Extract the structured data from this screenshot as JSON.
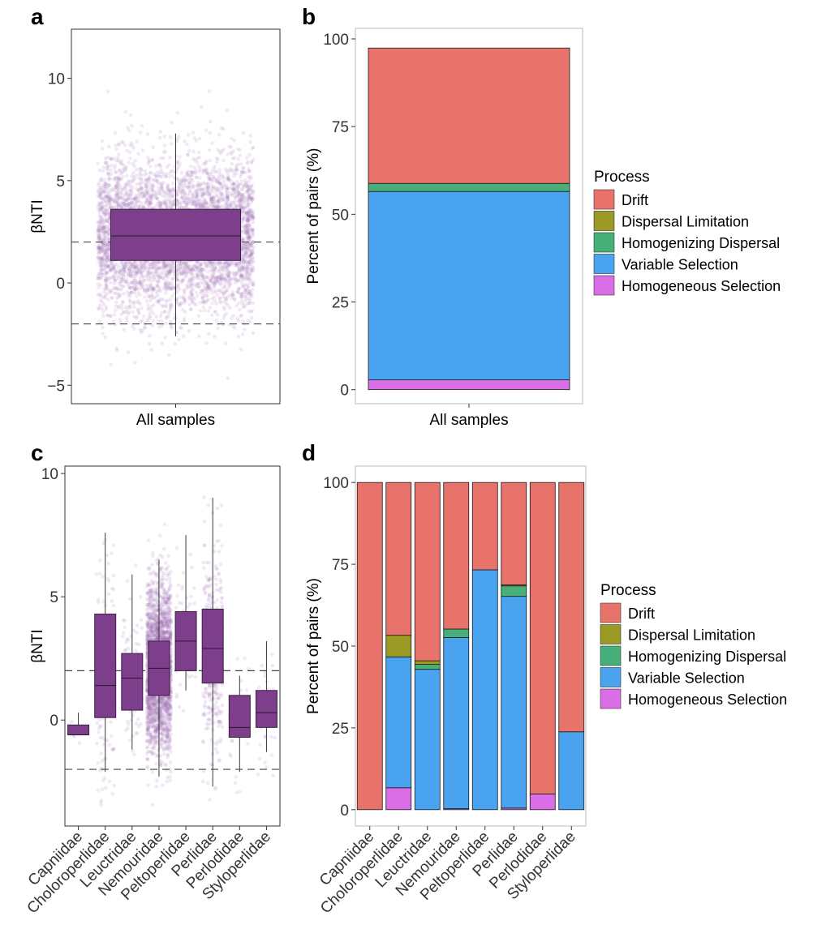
{
  "panels": {
    "a": "a",
    "b": "b",
    "c": "c",
    "d": "d"
  },
  "colors": {
    "Drift": "#e8736a",
    "Dispersal Limitation": "#9a9a25",
    "Homogenizing Dispersal": "#47b07a",
    "Variable Selection": "#4aa3ee",
    "Homogeneous Selection": "#d96ee6",
    "box": "#7d3f8c",
    "points": "#9a6bb0"
  },
  "chart_data": [
    {
      "id": "a",
      "type": "box",
      "title": "",
      "xlabel": "All samples",
      "ylabel": "βNTI",
      "ylim": [
        -5.9,
        12.4
      ],
      "yticks": [
        -5,
        0,
        5,
        10
      ],
      "ytick_labels": [
        "−5",
        "0",
        "5",
        "10"
      ],
      "hlines": [
        2,
        -2
      ],
      "categories": [
        "All samples"
      ],
      "boxes": [
        {
          "q1": 1.1,
          "median": 2.3,
          "q3": 3.6,
          "whisker_low": -2.6,
          "whisker_high": 7.3
        }
      ]
    },
    {
      "id": "b",
      "type": "bar",
      "stacked": true,
      "xlabel": "All samples",
      "ylabel": "Percent of pairs (%)",
      "ylim": [
        -4,
        103
      ],
      "yticks": [
        0,
        25,
        50,
        75,
        100
      ],
      "ytick_labels": [
        "0",
        "25",
        "50",
        "75",
        "100"
      ],
      "categories": [
        "All samples"
      ],
      "series": [
        {
          "name": "Homogeneous Selection",
          "values": [
            2.8
          ]
        },
        {
          "name": "Variable Selection",
          "values": [
            53.7
          ]
        },
        {
          "name": "Homogenizing Dispersal",
          "values": [
            2.3
          ]
        },
        {
          "name": "Dispersal Limitation",
          "values": [
            0.0
          ]
        },
        {
          "name": "Drift",
          "values": [
            38.6
          ]
        }
      ],
      "legend": {
        "title": "Process",
        "position": "right",
        "items": [
          "Drift",
          "Dispersal Limitation",
          "Homogenizing Dispersal",
          "Variable Selection",
          "Homogeneous Selection"
        ]
      }
    },
    {
      "id": "c",
      "type": "box",
      "xlabel": "",
      "ylabel": "βNTI",
      "ylim": [
        -4.3,
        10.3
      ],
      "yticks": [
        0,
        5,
        10
      ],
      "ytick_labels": [
        "0",
        "5",
        "10"
      ],
      "hlines": [
        2,
        -2
      ],
      "categories": [
        "Capniidae",
        "Choloroperlidae",
        "Leuctridae",
        "Nemouridae",
        "Peltoperlidae",
        "Perlidae",
        "Perlodidae",
        "Styloperlidae"
      ],
      "boxes": [
        {
          "q1": -0.6,
          "median": -0.6,
          "q3": -0.2,
          "whisker_low": -0.6,
          "whisker_high": 0.3
        },
        {
          "q1": 0.1,
          "median": 1.4,
          "q3": 4.3,
          "whisker_low": -2.1,
          "whisker_high": 7.6
        },
        {
          "q1": 0.4,
          "median": 1.7,
          "q3": 2.7,
          "whisker_low": -1.2,
          "whisker_high": 5.9
        },
        {
          "q1": 1.0,
          "median": 2.1,
          "q3": 3.2,
          "whisker_low": -2.3,
          "whisker_high": 6.5
        },
        {
          "q1": 2.0,
          "median": 3.2,
          "q3": 4.4,
          "whisker_low": 1.2,
          "whisker_high": 7.5
        },
        {
          "q1": 1.5,
          "median": 2.9,
          "q3": 4.5,
          "whisker_low": -2.7,
          "whisker_high": 9.0
        },
        {
          "q1": -0.7,
          "median": -0.3,
          "q3": 1.0,
          "whisker_low": -2.1,
          "whisker_high": 1.8
        },
        {
          "q1": -0.3,
          "median": 0.3,
          "q3": 1.2,
          "whisker_low": -1.3,
          "whisker_high": 3.2
        }
      ]
    },
    {
      "id": "d",
      "type": "bar",
      "stacked": true,
      "xlabel": "",
      "ylabel": "Percent of pairs (%)",
      "ylim": [
        -5,
        105
      ],
      "yticks": [
        0,
        25,
        50,
        75,
        100
      ],
      "ytick_labels": [
        "0",
        "25",
        "50",
        "75",
        "100"
      ],
      "categories": [
        "Capniidae",
        "Choloroperlidae",
        "Leuctridae",
        "Nemouridae",
        "Peltoperlidae",
        "Perlidae",
        "Perlodidae",
        "Styloperlidae"
      ],
      "series": [
        {
          "name": "Homogeneous Selection",
          "values": [
            0,
            6.7,
            0,
            0.3,
            0,
            0.5,
            4.8,
            0
          ]
        },
        {
          "name": "Variable Selection",
          "values": [
            0,
            40.0,
            42.9,
            52.3,
            73.3,
            64.7,
            0,
            23.8
          ]
        },
        {
          "name": "Homogenizing Dispersal",
          "values": [
            0,
            0,
            1.5,
            2.6,
            0,
            3.2,
            0,
            0
          ]
        },
        {
          "name": "Dispersal Limitation",
          "values": [
            0,
            6.6,
            1.1,
            0,
            0,
            0.3,
            0,
            0
          ]
        },
        {
          "name": "Drift",
          "values": [
            100,
            46.7,
            54.5,
            44.8,
            26.7,
            31.3,
            95.2,
            76.2
          ]
        }
      ],
      "legend": {
        "title": "Process",
        "position": "right",
        "items": [
          "Drift",
          "Dispersal Limitation",
          "Homogenizing Dispersal",
          "Variable Selection",
          "Homogeneous Selection"
        ]
      }
    }
  ]
}
